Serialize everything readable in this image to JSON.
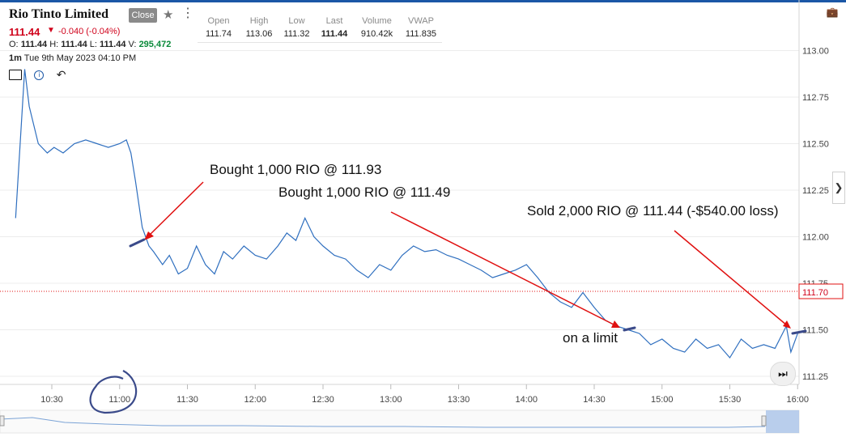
{
  "header": {
    "title": "Rio Tinto Limited",
    "close_label": "Close",
    "price": "111.44",
    "change": "-0.040 (-0.04%)",
    "ohlc": {
      "o_label": "O:",
      "o": "111.44",
      "h_label": "H:",
      "h": "111.44",
      "l_label": "L:",
      "l": "111.44",
      "v_label": "V:",
      "v": "295,472"
    },
    "interval": "1m",
    "datetime": "Tue 9th May 2023 04:10 PM"
  },
  "stats": [
    {
      "label": "Open",
      "value": "111.74"
    },
    {
      "label": "High",
      "value": "113.06"
    },
    {
      "label": "Low",
      "value": "111.32"
    },
    {
      "label": "Last",
      "value": "111.44"
    },
    {
      "label": "Volume",
      "value": "910.42k"
    },
    {
      "label": "VWAP",
      "value": "111.835"
    }
  ],
  "icons": {
    "star": "star-icon",
    "menu": "kebab-menu-icon",
    "save": "save-layout-icon",
    "info": "info-icon",
    "undo": "undo-icon",
    "briefcase": "briefcase-icon",
    "expand": "chevron-right-icon",
    "jump": "jump-to-latest-icon"
  },
  "colors": {
    "line": "#2f6fbf",
    "annotation": "#e01010",
    "accent": "#d0021b",
    "marker": "#3a4a8a"
  },
  "chart_data": {
    "type": "line",
    "x_ticks": [
      "10:30",
      "11:00",
      "11:30",
      "12:00",
      "12:30",
      "13:00",
      "13:30",
      "14:00",
      "14:30",
      "15:00",
      "15:30",
      "16:00"
    ],
    "y_ticks": [
      "111.25",
      "111.50",
      "111.75",
      "112.00",
      "112.25",
      "112.50",
      "112.75",
      "113.00"
    ],
    "ylim": [
      111.2,
      113.2
    ],
    "current_price_label": "111.70",
    "grid": "horizontal",
    "series": [
      {
        "x": [
          "10:14",
          "10:18",
          "10:20",
          "10:24",
          "10:28",
          "10:31",
          "10:35",
          "10:40",
          "10:45",
          "10:50",
          "10:55",
          "11:00",
          "11:03",
          "11:05",
          "11:07",
          "11:10",
          "11:13",
          "11:15",
          "11:19",
          "11:22",
          "11:26",
          "11:30",
          "11:34",
          "11:38",
          "11:42",
          "11:46",
          "11:50",
          "11:55",
          "12:00",
          "12:05",
          "12:10",
          "12:14",
          "12:18",
          "12:22",
          "12:26",
          "12:30",
          "12:35",
          "12:40",
          "12:45",
          "12:50",
          "12:55",
          "13:00",
          "13:05",
          "13:10",
          "13:15",
          "13:20",
          "13:25",
          "13:30",
          "13:35",
          "13:40",
          "13:45",
          "13:50",
          "13:55",
          "14:00",
          "14:05",
          "14:10",
          "14:15",
          "14:20",
          "14:25",
          "14:30",
          "14:35",
          "14:40",
          "14:45",
          "14:50",
          "14:55",
          "15:00",
          "15:05",
          "15:10",
          "15:15",
          "15:20",
          "15:25",
          "15:30",
          "15:35",
          "15:40",
          "15:45",
          "15:50",
          "15:55",
          "15:57",
          "16:00"
        ],
        "y": [
          112.1,
          112.9,
          112.7,
          112.5,
          112.45,
          112.48,
          112.45,
          112.5,
          112.52,
          112.5,
          112.48,
          112.5,
          112.52,
          112.45,
          112.3,
          112.05,
          111.95,
          111.92,
          111.85,
          111.9,
          111.8,
          111.83,
          111.95,
          111.85,
          111.8,
          111.92,
          111.88,
          111.95,
          111.9,
          111.88,
          111.95,
          112.02,
          111.98,
          112.1,
          112.0,
          111.95,
          111.9,
          111.88,
          111.82,
          111.78,
          111.85,
          111.82,
          111.9,
          111.95,
          111.92,
          111.93,
          111.9,
          111.88,
          111.85,
          111.82,
          111.78,
          111.8,
          111.82,
          111.85,
          111.78,
          111.7,
          111.65,
          111.62,
          111.7,
          111.62,
          111.55,
          111.52,
          111.5,
          111.48,
          111.42,
          111.45,
          111.4,
          111.38,
          111.45,
          111.4,
          111.42,
          111.35,
          111.45,
          111.4,
          111.42,
          111.4,
          111.52,
          111.38,
          111.48
        ]
      }
    ],
    "annotations": [
      "Bought 1,000 RIO @ 111.93",
      "Bought 1,000 RIO @ 111.49",
      "on a limit",
      "Sold 2,000 RIO @ 111.44 (-$540.00 loss)"
    ]
  }
}
